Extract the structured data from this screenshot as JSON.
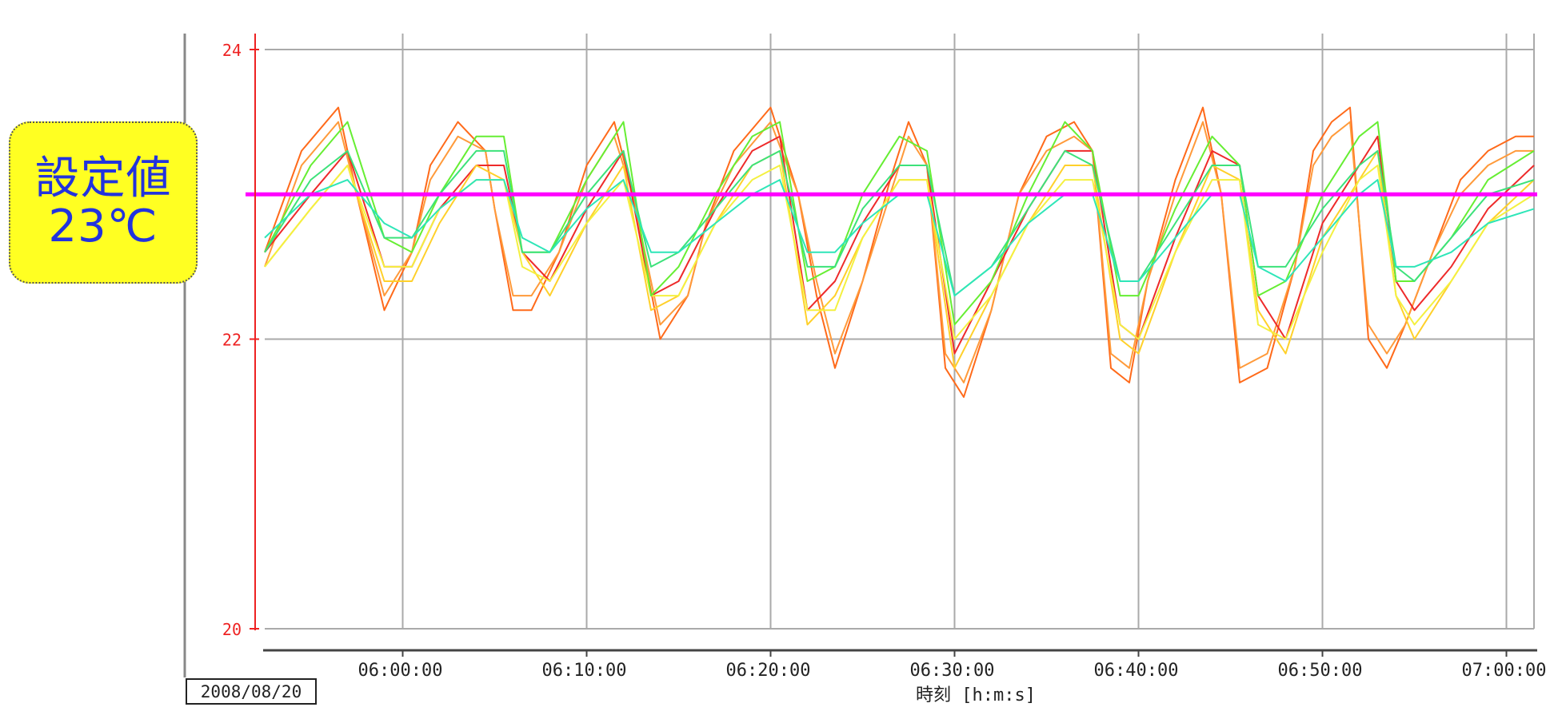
{
  "setpoint_badge": {
    "line1": "設定値",
    "line2": "23℃"
  },
  "date_label": "2008/08/20",
  "chart_data": {
    "type": "line",
    "title": "",
    "xlabel": "時刻 [h:m:s]",
    "ylabel": "",
    "xlim_minutes": [
      52.5,
      121.5
    ],
    "ylim": [
      20,
      24
    ],
    "y_ticks": [
      "20",
      "22",
      "24"
    ],
    "x_ticks": [
      "06:00:00",
      "06:10:00",
      "06:20:00",
      "06:30:00",
      "06:40:00",
      "06:50:00",
      "07:00:00"
    ],
    "x_tick_minutes": [
      60,
      70,
      80,
      90,
      100,
      110,
      120
    ],
    "grid": true,
    "setpoint": {
      "value": 23,
      "color": "#ff00ff"
    },
    "colors": {
      "axis_y": "#ee2222",
      "grid": "#aaaaaa",
      "badge_bg": "#ffff22",
      "badge_text": "#2233dd"
    },
    "series": [
      {
        "color": "#ff6a1a",
        "x": [
          52.5,
          54.5,
          56.5,
          57.5,
          59,
          60.5,
          61.5,
          63,
          64.5,
          65,
          66,
          67,
          68.5,
          70,
          71.5,
          72.5,
          74,
          75.5,
          76.5,
          78,
          80,
          81.5,
          82.5,
          83.5,
          85,
          86.5,
          87.5,
          88.5,
          89.5,
          90.5,
          92,
          93.5,
          95,
          96.5,
          97.5,
          98.5,
          99.5,
          100.5,
          102,
          103.5,
          104.5,
          105.5,
          107,
          108.5,
          109.5,
          110.5,
          111.5,
          112.5,
          113.5,
          114.5,
          116,
          117.5,
          119,
          120.5,
          121.5
        ],
        "y": [
          22.6,
          23.3,
          23.6,
          23.0,
          22.2,
          22.6,
          23.2,
          23.5,
          23.3,
          22.9,
          22.2,
          22.2,
          22.6,
          23.2,
          23.5,
          23.0,
          22.0,
          22.3,
          22.8,
          23.3,
          23.6,
          23.0,
          22.3,
          21.8,
          22.4,
          23.1,
          23.5,
          23.2,
          21.8,
          21.6,
          22.2,
          23.0,
          23.4,
          23.5,
          23.3,
          21.8,
          21.7,
          22.4,
          23.1,
          23.6,
          23.0,
          21.7,
          21.8,
          22.5,
          23.3,
          23.5,
          23.6,
          22.0,
          21.8,
          22.1,
          22.6,
          23.1,
          23.3,
          23.4,
          23.4
        ]
      },
      {
        "color": "#ff9a3a",
        "x": [
          52.5,
          54.5,
          56.5,
          57.5,
          59,
          60.5,
          61.5,
          63,
          64.5,
          65,
          66,
          67,
          68.5,
          70,
          71.5,
          72.5,
          74,
          75.5,
          76.5,
          78,
          80,
          81.5,
          82.5,
          83.5,
          85,
          86.5,
          87.5,
          88.5,
          89.5,
          90.5,
          92,
          93.5,
          95,
          96.5,
          97.5,
          98.5,
          99.5,
          100.5,
          102,
          103.5,
          104.5,
          105.5,
          107,
          108.5,
          109.5,
          110.5,
          111.5,
          112.5,
          113.5,
          114.5,
          116,
          117.5,
          119,
          120.5,
          121.5
        ],
        "y": [
          22.5,
          23.2,
          23.5,
          23.0,
          22.3,
          22.6,
          23.1,
          23.4,
          23.3,
          22.9,
          22.3,
          22.3,
          22.6,
          23.1,
          23.4,
          23.0,
          22.1,
          22.3,
          22.8,
          23.2,
          23.5,
          23.0,
          22.4,
          21.9,
          22.4,
          23.0,
          23.4,
          23.2,
          21.9,
          21.7,
          22.2,
          23.0,
          23.3,
          23.4,
          23.3,
          21.9,
          21.8,
          22.4,
          23.0,
          23.5,
          23.0,
          21.8,
          21.9,
          22.5,
          23.2,
          23.4,
          23.5,
          22.1,
          21.9,
          22.1,
          22.6,
          23.0,
          23.2,
          23.3,
          23.3
        ]
      },
      {
        "color": "#ee2a2a",
        "x": [
          52.5,
          55,
          57,
          59,
          60.5,
          62,
          64,
          65.5,
          66.5,
          68,
          70,
          72,
          73.5,
          75,
          77,
          79,
          80.5,
          82,
          83.5,
          85,
          87,
          88.5,
          90,
          92,
          94,
          96,
          97.5,
          99,
          100,
          102,
          104,
          105.5,
          106.5,
          108,
          110,
          112,
          113,
          114,
          115,
          117,
          119,
          121.5
        ],
        "y": [
          22.6,
          23.0,
          23.3,
          22.5,
          22.5,
          22.9,
          23.2,
          23.2,
          22.6,
          22.4,
          22.9,
          23.3,
          22.3,
          22.4,
          22.9,
          23.3,
          23.4,
          22.2,
          22.4,
          22.8,
          23.2,
          23.2,
          21.9,
          22.4,
          22.9,
          23.3,
          23.3,
          22.1,
          22.0,
          22.7,
          23.3,
          23.2,
          22.3,
          22.0,
          22.8,
          23.2,
          23.4,
          22.4,
          22.2,
          22.5,
          22.9,
          23.2
        ]
      },
      {
        "color": "#ffd02a",
        "x": [
          52.5,
          55,
          57,
          59,
          60.5,
          62,
          64,
          65.5,
          66.5,
          68,
          70,
          72,
          73.5,
          75,
          77,
          79,
          80.5,
          82,
          83.5,
          85,
          87,
          88.5,
          90,
          92,
          94,
          96,
          97.5,
          99,
          100,
          102,
          104,
          105.5,
          106.5,
          108,
          110,
          112,
          113,
          114,
          115,
          117,
          119,
          121.5
        ],
        "y": [
          22.5,
          22.9,
          23.2,
          22.4,
          22.4,
          22.8,
          23.2,
          23.1,
          22.6,
          22.3,
          22.8,
          23.2,
          22.2,
          22.3,
          22.8,
          23.2,
          23.3,
          22.1,
          22.3,
          22.7,
          23.1,
          23.1,
          21.8,
          22.3,
          22.8,
          23.2,
          23.2,
          22.0,
          21.9,
          22.6,
          23.2,
          23.1,
          22.2,
          21.9,
          22.7,
          23.1,
          23.3,
          22.3,
          22.0,
          22.4,
          22.8,
          23.1
        ]
      },
      {
        "color": "#f4f040",
        "x": [
          52.5,
          55,
          57,
          59,
          60.5,
          62,
          64,
          65.5,
          66.5,
          68,
          70,
          72,
          73.5,
          75,
          77,
          79,
          80.5,
          82,
          83.5,
          85,
          87,
          88.5,
          90,
          92,
          94,
          96,
          97.5,
          99,
          100,
          102,
          104,
          105.5,
          106.5,
          108,
          110,
          112,
          113,
          114,
          115,
          117,
          119,
          121.5
        ],
        "y": [
          22.5,
          22.9,
          23.2,
          22.5,
          22.5,
          22.9,
          23.1,
          23.1,
          22.5,
          22.4,
          22.8,
          23.1,
          22.3,
          22.3,
          22.8,
          23.1,
          23.2,
          22.2,
          22.2,
          22.7,
          23.1,
          23.1,
          22.0,
          22.3,
          22.8,
          23.1,
          23.1,
          22.1,
          22.0,
          22.6,
          23.1,
          23.1,
          22.1,
          22.0,
          22.6,
          23.1,
          23.2,
          22.3,
          22.1,
          22.4,
          22.8,
          23.0
        ]
      },
      {
        "color": "#66ee33",
        "x": [
          52.5,
          55,
          57,
          59,
          60.5,
          62,
          64,
          65.5,
          66.5,
          68,
          70,
          72,
          73.5,
          75,
          77,
          79,
          80.5,
          82,
          83.5,
          85,
          87,
          88.5,
          90,
          92,
          94,
          96,
          97.5,
          99,
          100,
          102,
          104,
          105.5,
          106.5,
          108,
          110,
          112,
          113,
          114,
          115,
          117,
          119,
          121.5
        ],
        "y": [
          22.6,
          23.2,
          23.5,
          22.7,
          22.6,
          23.0,
          23.4,
          23.4,
          22.6,
          22.6,
          23.1,
          23.5,
          22.3,
          22.5,
          23.0,
          23.4,
          23.5,
          22.4,
          22.5,
          23.0,
          23.4,
          23.3,
          22.1,
          22.4,
          23.0,
          23.5,
          23.3,
          22.3,
          22.3,
          22.9,
          23.4,
          23.2,
          22.3,
          22.4,
          23.0,
          23.4,
          23.5,
          22.4,
          22.4,
          22.7,
          23.1,
          23.3
        ]
      },
      {
        "color": "#3ce27a",
        "x": [
          52.5,
          55,
          57,
          59,
          60.5,
          62,
          64,
          65.5,
          66.5,
          68,
          70,
          72,
          73.5,
          75,
          77,
          79,
          80.5,
          82,
          83.5,
          85,
          87,
          88.5,
          90,
          92,
          94,
          96,
          97.5,
          99,
          100,
          102,
          104,
          105.5,
          106.5,
          108,
          110,
          112,
          113,
          114,
          115,
          117,
          119,
          121.5
        ],
        "y": [
          22.6,
          23.1,
          23.3,
          22.7,
          22.7,
          23.0,
          23.3,
          23.3,
          22.6,
          22.6,
          23.0,
          23.3,
          22.5,
          22.6,
          22.9,
          23.2,
          23.3,
          22.5,
          22.5,
          22.9,
          23.2,
          23.2,
          22.3,
          22.5,
          22.9,
          23.3,
          23.2,
          22.4,
          22.4,
          22.8,
          23.2,
          23.2,
          22.5,
          22.5,
          22.9,
          23.2,
          23.3,
          22.5,
          22.4,
          22.7,
          23.0,
          23.1
        ]
      },
      {
        "color": "#2ee6b8",
        "x": [
          52.5,
          55,
          57,
          59,
          60.5,
          62,
          64,
          65.5,
          66.5,
          68,
          70,
          72,
          73.5,
          75,
          77,
          79,
          80.5,
          82,
          83.5,
          85,
          87,
          88.5,
          90,
          92,
          94,
          96,
          97.5,
          99,
          100,
          102,
          104,
          105.5,
          106.5,
          108,
          110,
          112,
          113,
          114,
          115,
          117,
          119,
          121.5
        ],
        "y": [
          22.7,
          23.0,
          23.1,
          22.8,
          22.7,
          22.9,
          23.1,
          23.1,
          22.7,
          22.6,
          22.9,
          23.1,
          22.6,
          22.6,
          22.8,
          23.0,
          23.1,
          22.6,
          22.6,
          22.8,
          23.0,
          23.0,
          22.3,
          22.5,
          22.8,
          23.0,
          23.0,
          22.4,
          22.4,
          22.7,
          23.0,
          23.0,
          22.5,
          22.4,
          22.7,
          23.0,
          23.1,
          22.5,
          22.5,
          22.6,
          22.8,
          22.9
        ]
      }
    ]
  }
}
